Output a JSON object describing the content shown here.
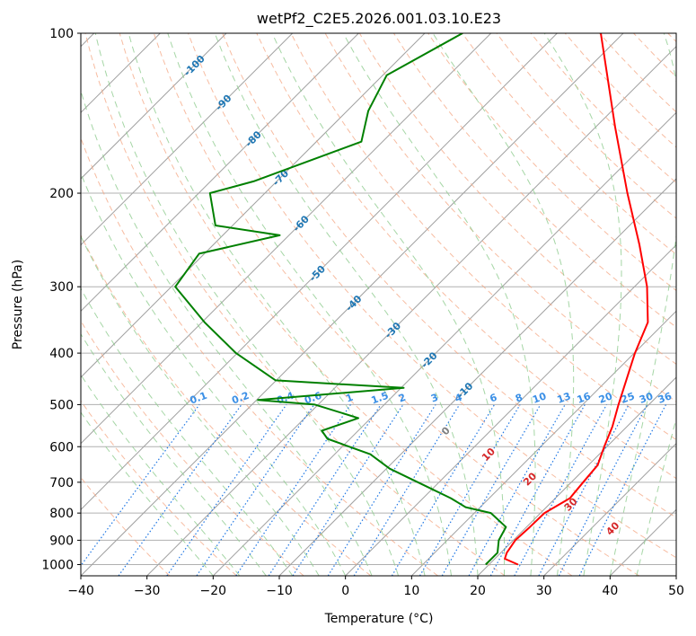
{
  "chart_data": {
    "type": "line",
    "title": "wetPf2_C2E5.2026.001.03.10.E23",
    "xlabel": "Temperature (°C)",
    "ylabel": "Pressure (hPa)",
    "xlim": [
      -40,
      50
    ],
    "ylim": [
      1050,
      100
    ],
    "y_scale": "log",
    "x_ticks": [
      "−40",
      "−30",
      "−20",
      "−10",
      "0",
      "10",
      "20",
      "30",
      "40",
      "50"
    ],
    "y_ticks": [
      "100",
      "200",
      "300",
      "400",
      "500",
      "600",
      "700",
      "800",
      "900",
      "1000"
    ],
    "grid": true,
    "colors": {
      "temperature": "#ff0000",
      "dewpoint": "#008000",
      "dry_adiabat": "#f4a582",
      "moist_adiabat": "#8fcc8f",
      "mixing_ratio": "#1f77e4",
      "isotherm": "#808080",
      "label_blue": "#1f77b4",
      "label_red": "#d62728"
    },
    "series": [
      {
        "name": "",
        "values_desc": "temperature",
        "p": [
          1000,
          975,
          950,
          900,
          850,
          800,
          750,
          700,
          650,
          600,
          550,
          500,
          450,
          400,
          350,
          300,
          250,
          200,
          150,
          100
        ],
        "t": [
          24.4,
          21.5,
          20.9,
          20.3,
          20.5,
          20.6,
          22.2,
          21.8,
          21.4,
          19.6,
          17.8,
          15.4,
          12.9,
          10.1,
          7.4,
          1.9,
          -5.6,
          -15.2,
          -27.1,
          -43.4
        ]
      },
      {
        "name": "",
        "values_desc": "dewpoint",
        "p": [
          1000,
          950,
          900,
          850,
          800,
          780,
          750,
          700,
          660,
          620,
          580,
          560,
          530,
          500,
          490,
          465,
          450,
          400,
          350,
          300,
          260,
          240,
          230,
          200,
          190,
          160,
          140,
          120,
          100
        ],
        "t": [
          19.5,
          19.5,
          17.8,
          16.9,
          12.5,
          7.8,
          4.2,
          -3.2,
          -9.5,
          -14.6,
          -23.4,
          -25.5,
          -21.9,
          -30.5,
          -39.8,
          -19.6,
          -40.1,
          -50.2,
          -59.6,
          -69.4,
          -70.8,
          -61.4,
          -72.6,
          -78.3,
          -73.5,
          -63.2,
          -66.8,
          -69.4,
          -64.3
        ]
      }
    ],
    "dry_adiabat_labels": [
      "-100",
      "-90",
      "-80",
      "-70",
      "-60",
      "-50",
      "-40",
      "-30",
      "-20",
      "-10"
    ],
    "moist_adiabat_labels": [
      "0",
      "10",
      "20",
      "30",
      "40"
    ],
    "mixing_ratio_labels": [
      "0.1",
      "0.2",
      "0.4",
      "0.6",
      "1",
      "1.5",
      "2",
      "3",
      "4",
      "6",
      "8",
      "10",
      "13",
      "16",
      "20",
      "25",
      "30",
      "36"
    ]
  }
}
